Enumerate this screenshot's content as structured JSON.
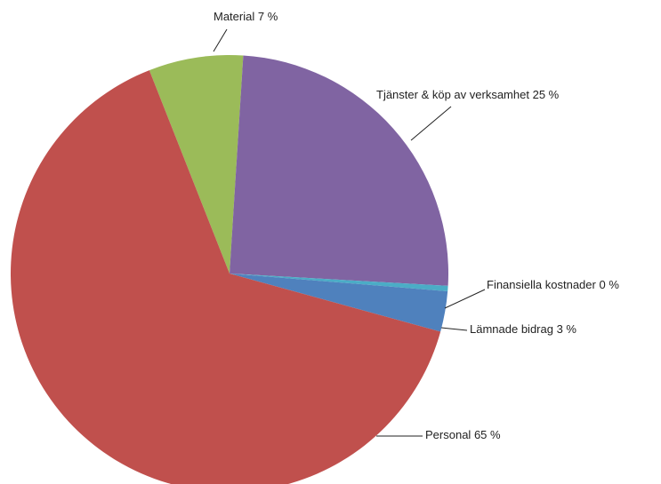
{
  "chart_data": {
    "type": "pie",
    "categories": [
      "Material",
      "Tjänster & köp av verksamhet",
      "Finansiella kostnader",
      "Lämnade bidrag",
      "Personal"
    ],
    "values": [
      7,
      25,
      0.4,
      3,
      65
    ],
    "value_labels": [
      "7 %",
      "25 %",
      "0 %",
      "3 %",
      "65 %"
    ],
    "colors": [
      "#9bbb59",
      "#8064a2",
      "#4bacc6",
      "#4f81bd",
      "#c0504d"
    ]
  }
}
